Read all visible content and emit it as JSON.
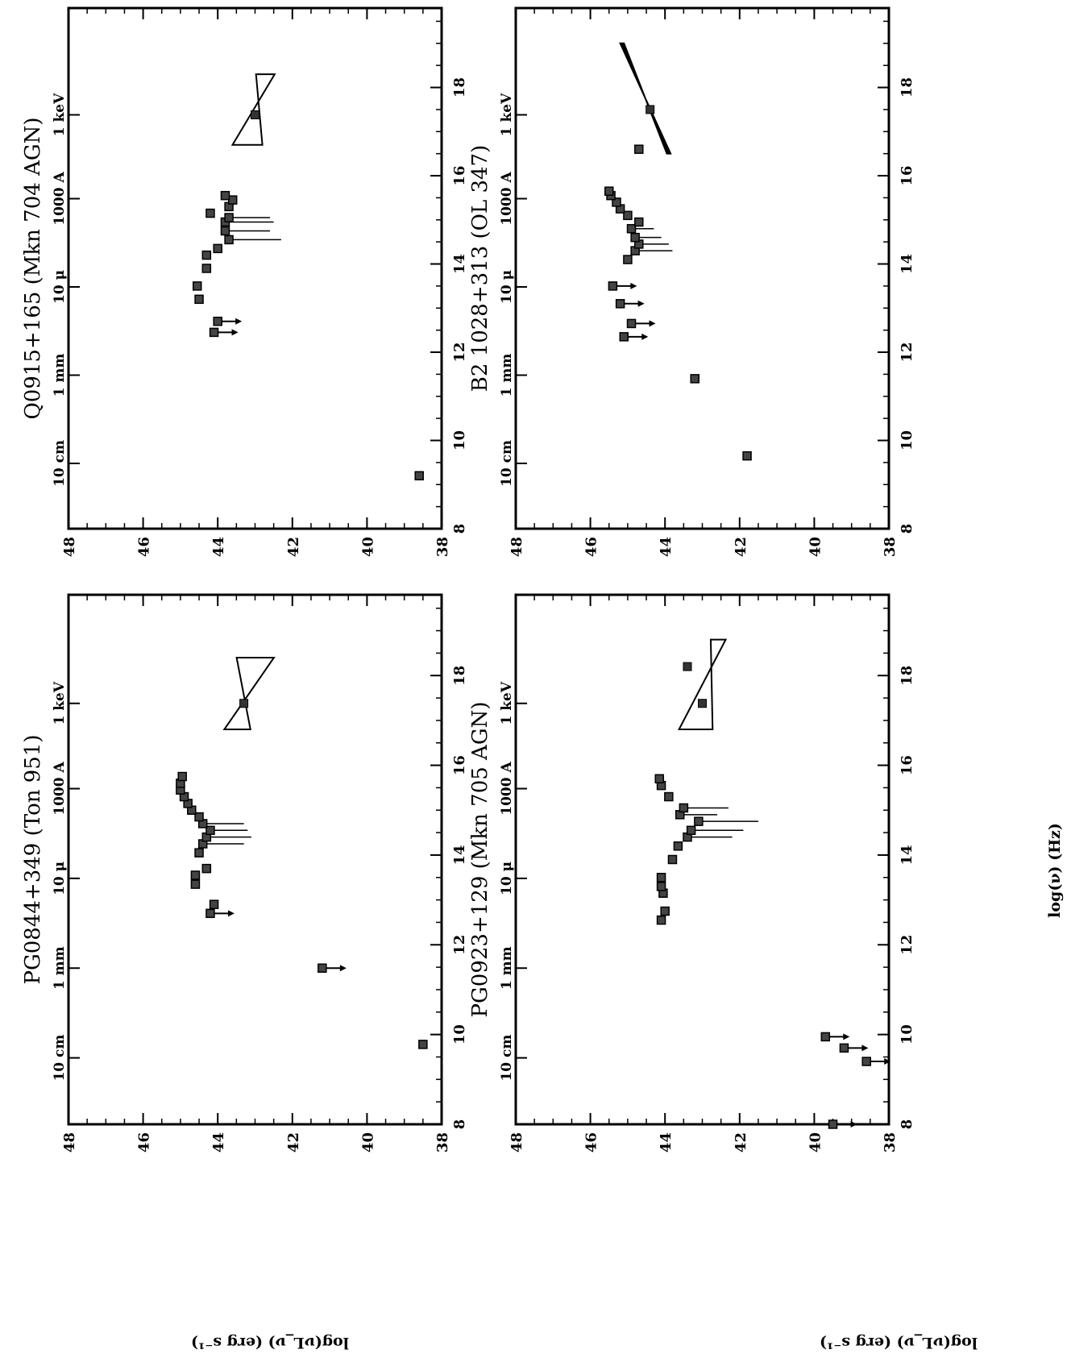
{
  "figure": {
    "xlabel": "log(ν) (Hz)",
    "ylabel": "log(νL_ν) (erg s⁻¹)"
  },
  "chart_data": [
    {
      "type": "scatter",
      "title": "PG0844+349 (Ton 951)",
      "xlim": [
        8,
        19.8
      ],
      "ylim": [
        38,
        48
      ],
      "x_ticks": [
        8,
        10,
        12,
        14,
        16,
        18
      ],
      "y_ticks": [
        38,
        40,
        42,
        44,
        46,
        48
      ],
      "wavelength_ticks": [
        {
          "label": "10 cm",
          "x": 9.48
        },
        {
          "label": "1 mm",
          "x": 11.48
        },
        {
          "label": "10 μ",
          "x": 13.48
        },
        {
          "label": "1000 A",
          "x": 15.48
        },
        {
          "label": "1 keV",
          "x": 17.38
        }
      ],
      "points": [
        {
          "x": 9.78,
          "y": 38.5,
          "upper_limit": false
        },
        {
          "x": 11.48,
          "y": 41.2,
          "upper_limit": true
        },
        {
          "x": 12.7,
          "y": 44.2,
          "upper_limit": true
        },
        {
          "x": 12.9,
          "y": 44.1,
          "upper_limit": false
        },
        {
          "x": 13.35,
          "y": 44.6,
          "upper_limit": false
        },
        {
          "x": 13.55,
          "y": 44.6,
          "upper_limit": false
        },
        {
          "x": 13.7,
          "y": 44.3,
          "upper_limit": false
        },
        {
          "x": 14.05,
          "y": 44.5,
          "upper_limit": false
        },
        {
          "x": 14.25,
          "y": 44.4,
          "upper_limit": false,
          "err": 1.1
        },
        {
          "x": 14.4,
          "y": 44.3,
          "upper_limit": false,
          "err": 1.2
        },
        {
          "x": 14.55,
          "y": 44.2,
          "upper_limit": false,
          "err": 1.0
        },
        {
          "x": 14.7,
          "y": 44.4,
          "upper_limit": false,
          "err": 1.1
        },
        {
          "x": 14.85,
          "y": 44.5,
          "upper_limit": false
        },
        {
          "x": 15.0,
          "y": 44.7,
          "upper_limit": false
        },
        {
          "x": 15.15,
          "y": 44.8,
          "upper_limit": false
        },
        {
          "x": 15.3,
          "y": 44.9,
          "upper_limit": false
        },
        {
          "x": 15.45,
          "y": 45.0,
          "upper_limit": false
        },
        {
          "x": 15.6,
          "y": 45.0,
          "upper_limit": false
        },
        {
          "x": 15.75,
          "y": 44.95,
          "upper_limit": false
        }
      ],
      "xray_bowtie": {
        "x_center": 17.38,
        "y_center": 43.3,
        "x_range": [
          16.8,
          18.4
        ],
        "width_at_ends": [
          0.7,
          1.0
        ]
      }
    },
    {
      "type": "scatter",
      "title": "Q0915+165 (Mkn 704 AGN)",
      "xlim": [
        8,
        19.8
      ],
      "ylim": [
        38,
        48
      ],
      "x_ticks": [
        8,
        10,
        12,
        14,
        16,
        18
      ],
      "y_ticks": [
        38,
        40,
        42,
        44,
        46,
        48
      ],
      "wavelength_ticks": [
        {
          "label": "10 cm",
          "x": 9.48
        },
        {
          "label": "1 mm",
          "x": 11.48
        },
        {
          "label": "10 μ",
          "x": 13.48
        },
        {
          "label": "1000 A",
          "x": 15.48
        },
        {
          "label": "1 keV",
          "x": 17.38
        }
      ],
      "points": [
        {
          "x": 9.2,
          "y": 38.6,
          "upper_limit": false
        },
        {
          "x": 12.45,
          "y": 44.1,
          "upper_limit": true
        },
        {
          "x": 12.7,
          "y": 44.0,
          "upper_limit": true
        },
        {
          "x": 13.2,
          "y": 44.5,
          "upper_limit": false
        },
        {
          "x": 13.5,
          "y": 44.55,
          "upper_limit": false
        },
        {
          "x": 13.9,
          "y": 44.3,
          "upper_limit": false
        },
        {
          "x": 14.2,
          "y": 44.3,
          "upper_limit": false
        },
        {
          "x": 14.35,
          "y": 44.0,
          "upper_limit": false
        },
        {
          "x": 14.55,
          "y": 43.7,
          "upper_limit": false,
          "err": 1.4
        },
        {
          "x": 14.75,
          "y": 43.8,
          "upper_limit": false,
          "err": 1.2
        },
        {
          "x": 14.95,
          "y": 43.8,
          "upper_limit": false,
          "err": 1.3
        },
        {
          "x": 15.05,
          "y": 43.7,
          "upper_limit": false,
          "err": 1.1
        },
        {
          "x": 15.15,
          "y": 44.2,
          "upper_limit": false
        },
        {
          "x": 15.3,
          "y": 43.7,
          "upper_limit": false
        },
        {
          "x": 15.45,
          "y": 43.6,
          "upper_limit": false
        },
        {
          "x": 15.55,
          "y": 43.8,
          "upper_limit": false
        }
      ],
      "xray_bowtie": {
        "x_center": 17.38,
        "y_center": 43.0,
        "x_range": [
          16.7,
          18.3
        ],
        "width_at_ends": [
          0.8,
          0.5
        ]
      }
    },
    {
      "type": "scatter",
      "title": "PG0923+129 (Mkn 705 AGN)",
      "xlim": [
        8,
        19.8
      ],
      "ylim": [
        38,
        48
      ],
      "x_ticks": [
        8,
        10,
        12,
        14,
        16,
        18
      ],
      "y_ticks": [
        38,
        40,
        42,
        44,
        46,
        48
      ],
      "wavelength_ticks": [
        {
          "label": "10 cm",
          "x": 9.48
        },
        {
          "label": "1 mm",
          "x": 11.48
        },
        {
          "label": "10 μ",
          "x": 13.48
        },
        {
          "label": "1000 A",
          "x": 15.48
        },
        {
          "label": "1 keV",
          "x": 17.38
        }
      ],
      "points": [
        {
          "x": 8.0,
          "y": 39.5,
          "upper_limit": true
        },
        {
          "x": 9.4,
          "y": 38.6,
          "upper_limit": true
        },
        {
          "x": 9.7,
          "y": 39.2,
          "upper_limit": true
        },
        {
          "x": 9.95,
          "y": 39.7,
          "upper_limit": true
        },
        {
          "x": 12.55,
          "y": 44.1,
          "upper_limit": false
        },
        {
          "x": 12.75,
          "y": 44.0,
          "upper_limit": false
        },
        {
          "x": 13.15,
          "y": 44.05,
          "upper_limit": false
        },
        {
          "x": 13.3,
          "y": 44.1,
          "upper_limit": false
        },
        {
          "x": 13.5,
          "y": 44.1,
          "upper_limit": false
        },
        {
          "x": 13.9,
          "y": 43.8,
          "upper_limit": false
        },
        {
          "x": 14.2,
          "y": 43.65,
          "upper_limit": false
        },
        {
          "x": 14.4,
          "y": 43.4,
          "upper_limit": false,
          "err": 1.2
        },
        {
          "x": 14.55,
          "y": 43.3,
          "upper_limit": false,
          "err": 1.4
        },
        {
          "x": 14.75,
          "y": 43.1,
          "upper_limit": false,
          "err": 1.6
        },
        {
          "x": 14.9,
          "y": 43.6,
          "upper_limit": false,
          "err": 1.0
        },
        {
          "x": 15.05,
          "y": 43.5,
          "upper_limit": false,
          "err": 1.2
        },
        {
          "x": 15.3,
          "y": 43.9,
          "upper_limit": false
        },
        {
          "x": 15.55,
          "y": 44.1,
          "upper_limit": false
        },
        {
          "x": 15.7,
          "y": 44.15,
          "upper_limit": false
        }
      ],
      "xray_bowtie": {
        "x_center": 17.38,
        "y_center": 43.0,
        "x_range": [
          16.8,
          18.8
        ],
        "width_at_ends": [
          0.9,
          0.4
        ]
      },
      "xray_point": {
        "x": 18.2,
        "y": 43.4
      }
    },
    {
      "type": "scatter",
      "title": "B2 1028+313 (OL 347)",
      "xlim": [
        8,
        19.8
      ],
      "ylim": [
        38,
        48
      ],
      "x_ticks": [
        8,
        10,
        12,
        14,
        16,
        18
      ],
      "y_ticks": [
        38,
        40,
        42,
        44,
        46,
        48
      ],
      "wavelength_ticks": [
        {
          "label": "10 cm",
          "x": 9.48
        },
        {
          "label": "1 mm",
          "x": 11.48
        },
        {
          "label": "10 μ",
          "x": 13.48
        },
        {
          "label": "1000 A",
          "x": 15.48
        },
        {
          "label": "1 keV",
          "x": 17.38
        }
      ],
      "points": [
        {
          "x": 9.65,
          "y": 41.8,
          "upper_limit": false
        },
        {
          "x": 11.4,
          "y": 43.2,
          "upper_limit": false
        },
        {
          "x": 12.35,
          "y": 45.1,
          "upper_limit": true
        },
        {
          "x": 12.65,
          "y": 44.9,
          "upper_limit": true
        },
        {
          "x": 13.1,
          "y": 45.2,
          "upper_limit": true
        },
        {
          "x": 13.5,
          "y": 45.4,
          "upper_limit": true
        },
        {
          "x": 14.1,
          "y": 45.0,
          "upper_limit": false
        },
        {
          "x": 14.3,
          "y": 44.8,
          "upper_limit": false,
          "err": 1.0
        },
        {
          "x": 14.45,
          "y": 44.7,
          "upper_limit": false,
          "err": 0.8
        },
        {
          "x": 14.6,
          "y": 44.8,
          "upper_limit": false,
          "err": 0.7
        },
        {
          "x": 14.8,
          "y": 44.9,
          "upper_limit": false,
          "err": 0.6
        },
        {
          "x": 14.95,
          "y": 44.7,
          "upper_limit": false
        },
        {
          "x": 15.1,
          "y": 45.0,
          "upper_limit": false
        },
        {
          "x": 15.25,
          "y": 45.2,
          "upper_limit": false
        },
        {
          "x": 15.4,
          "y": 45.3,
          "upper_limit": false
        },
        {
          "x": 15.55,
          "y": 45.45,
          "upper_limit": false
        },
        {
          "x": 15.65,
          "y": 45.5,
          "upper_limit": false
        },
        {
          "x": 16.6,
          "y": 44.7,
          "upper_limit": false
        }
      ],
      "xray_bowtie": {
        "x_center": 17.5,
        "y_center": 44.4,
        "x_range": [
          16.5,
          19.0
        ],
        "width_at_ends": [
          0.1,
          0.1
        ]
      }
    }
  ]
}
